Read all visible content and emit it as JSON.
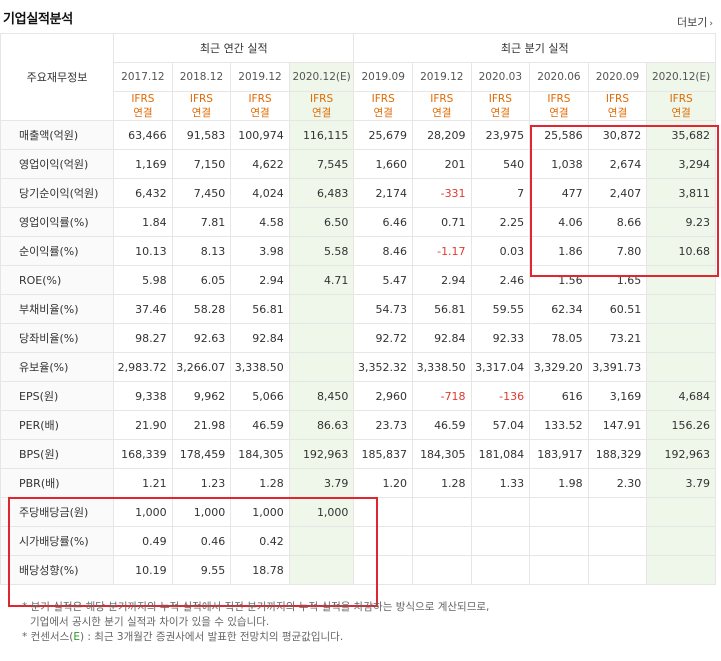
{
  "title": "기업실적분석",
  "more": "더보기",
  "header": {
    "row_label": "주요재무정보",
    "annual_group": "최근 연간 실적",
    "quarter_group": "최근 분기 실적",
    "periods": [
      "2017.12",
      "2018.12",
      "2019.12",
      "2020.12(E)",
      "2019.09",
      "2019.12",
      "2020.03",
      "2020.06",
      "2020.09",
      "2020.12(E)"
    ],
    "ifrs_top": "IFRS",
    "ifrs_bottom": "연결"
  },
  "rows": [
    {
      "label": "매출액(억원)",
      "values": [
        "63,466",
        "91,583",
        "100,974",
        "116,115",
        "25,679",
        "28,209",
        "23,975",
        "25,586",
        "30,872",
        "35,682"
      ]
    },
    {
      "label": "영업이익(억원)",
      "values": [
        "1,169",
        "7,150",
        "4,622",
        "7,545",
        "1,660",
        "201",
        "540",
        "1,038",
        "2,674",
        "3,294"
      ]
    },
    {
      "label": "당기순이익(억원)",
      "values": [
        "6,432",
        "7,450",
        "4,024",
        "6,483",
        "2,174",
        "-331",
        "7",
        "477",
        "2,407",
        "3,811"
      ]
    },
    {
      "label": "영업이익률(%)",
      "values": [
        "1.84",
        "7.81",
        "4.58",
        "6.50",
        "6.46",
        "0.71",
        "2.25",
        "4.06",
        "8.66",
        "9.23"
      ]
    },
    {
      "label": "순이익률(%)",
      "values": [
        "10.13",
        "8.13",
        "3.98",
        "5.58",
        "8.46",
        "-1.17",
        "0.03",
        "1.86",
        "7.80",
        "10.68"
      ]
    },
    {
      "label": "ROE(%)",
      "values": [
        "5.98",
        "6.05",
        "2.94",
        "4.71",
        "5.47",
        "2.94",
        "2.46",
        "1.56",
        "1.65",
        ""
      ]
    },
    {
      "label": "부채비율(%)",
      "values": [
        "37.46",
        "58.28",
        "56.81",
        "",
        "54.73",
        "56.81",
        "59.55",
        "62.34",
        "60.51",
        ""
      ]
    },
    {
      "label": "당좌비율(%)",
      "values": [
        "98.27",
        "92.63",
        "92.84",
        "",
        "92.72",
        "92.84",
        "92.33",
        "78.05",
        "73.21",
        ""
      ]
    },
    {
      "label": "유보율(%)",
      "values": [
        "2,983.72",
        "3,266.07",
        "3,338.50",
        "",
        "3,352.32",
        "3,338.50",
        "3,317.04",
        "3,329.20",
        "3,391.73",
        ""
      ]
    },
    {
      "label": "EPS(원)",
      "values": [
        "9,338",
        "9,962",
        "5,066",
        "8,450",
        "2,960",
        "-718",
        "-136",
        "616",
        "3,169",
        "4,684"
      ]
    },
    {
      "label": "PER(배)",
      "values": [
        "21.90",
        "21.98",
        "46.59",
        "86.63",
        "23.73",
        "46.59",
        "57.04",
        "133.52",
        "147.91",
        "156.26"
      ]
    },
    {
      "label": "BPS(원)",
      "values": [
        "168,339",
        "178,459",
        "184,305",
        "192,963",
        "185,837",
        "184,305",
        "181,084",
        "183,917",
        "188,329",
        "192,963"
      ]
    },
    {
      "label": "PBR(배)",
      "values": [
        "1.21",
        "1.23",
        "1.28",
        "3.79",
        "1.20",
        "1.28",
        "1.33",
        "1.98",
        "2.30",
        "3.79"
      ]
    },
    {
      "label": "주당배당금(원)",
      "values": [
        "1,000",
        "1,000",
        "1,000",
        "1,000",
        "",
        "",
        "",
        "",
        "",
        ""
      ]
    },
    {
      "label": "시가배당률(%)",
      "values": [
        "0.49",
        "0.46",
        "0.42",
        "",
        "",
        "",
        "",
        "",
        "",
        ""
      ]
    },
    {
      "label": "배당성향(%)",
      "values": [
        "10.19",
        "9.55",
        "18.78",
        "",
        "",
        "",
        "",
        "",
        "",
        ""
      ]
    }
  ],
  "notes": {
    "line1": "* 분기 실적은 해당 분기까지의 누적 실적에서 직전 분기까지의 누적 실적을 차감하는 방식으로 계산되므로,",
    "line2": "기업에서 공시한 분기 실적과 차이가 있을 수 있습니다.",
    "line3_prefix": "* 컨센서스(",
    "line3_e": "E",
    "line3_suffix": ") : 최근 3개월간 증권사에서 발표한 전망치의 평균값입니다."
  },
  "colors": {
    "accent_ifrs": "#e06a00",
    "negative": "#e03a2f",
    "estimate_bg": "#eef7ea",
    "highlight_box": "#e0262e"
  }
}
